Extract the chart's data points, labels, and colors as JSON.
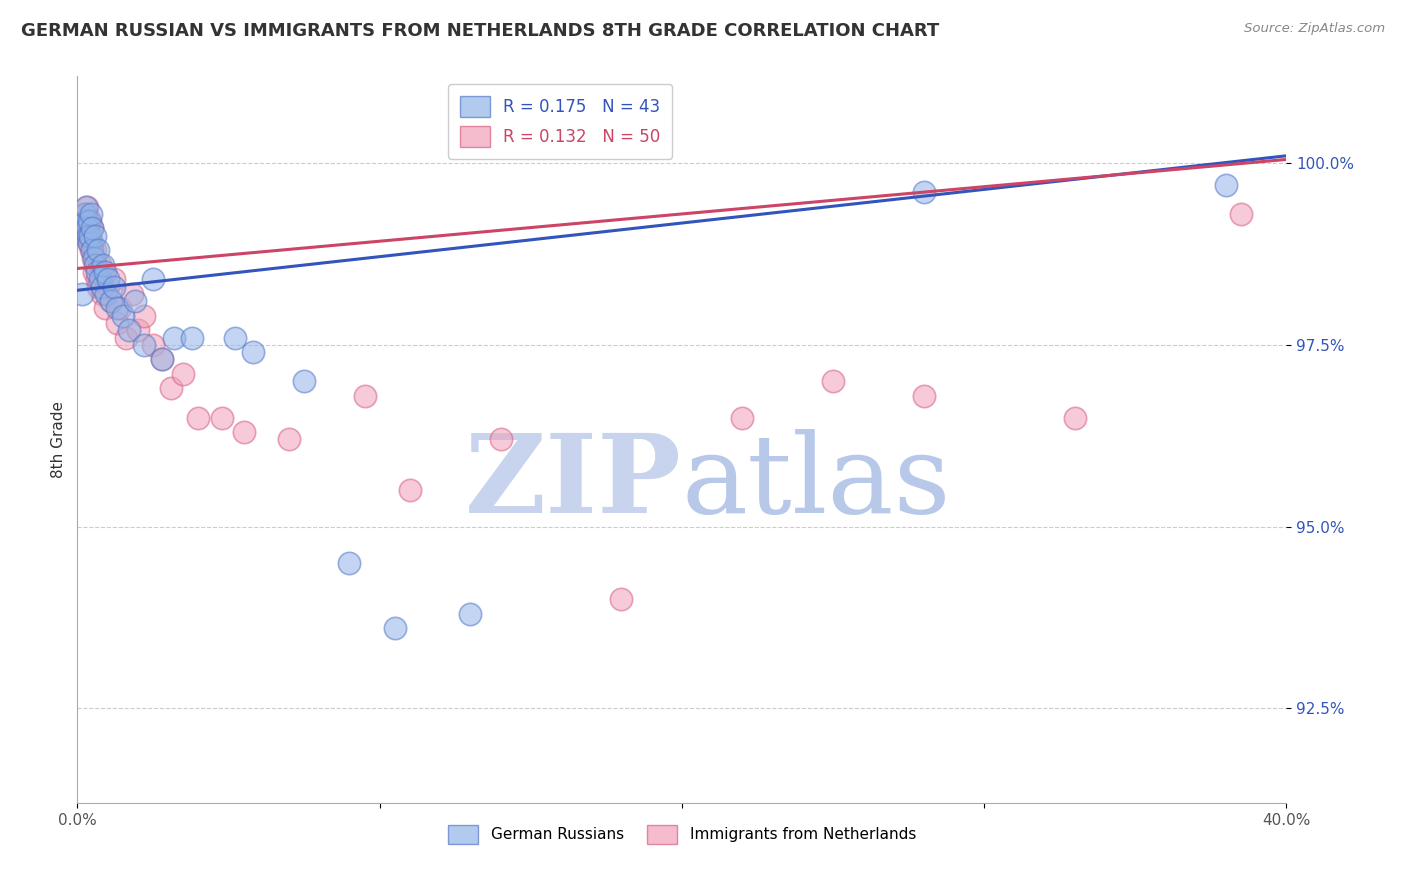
{
  "title": "GERMAN RUSSIAN VS IMMIGRANTS FROM NETHERLANDS 8TH GRADE CORRELATION CHART",
  "source": "Source: ZipAtlas.com",
  "ylabel": "8th Grade",
  "yticks": [
    92.5,
    95.0,
    97.5,
    100.0
  ],
  "ytick_labels": [
    "92.5%",
    "95.0%",
    "97.5%",
    "100.0%"
  ],
  "x_min": 0.0,
  "x_max": 40.0,
  "y_min": 91.2,
  "y_max": 101.2,
  "blue_label": "German Russians",
  "pink_label": "Immigrants from Netherlands",
  "blue_R": 0.175,
  "blue_N": 43,
  "pink_R": 0.132,
  "pink_N": 50,
  "blue_color": "#92B4E8",
  "pink_color": "#F0A0B8",
  "blue_edge_color": "#5578C8",
  "pink_edge_color": "#D86080",
  "blue_line_color": "#3355BB",
  "pink_line_color": "#CC4466",
  "watermark_zip_color": "#C8D4EE",
  "watermark_atlas_color": "#B8C8E8",
  "background_color": "#ffffff",
  "blue_x": [
    0.15,
    0.2,
    0.25,
    0.28,
    0.3,
    0.32,
    0.35,
    0.38,
    0.4,
    0.42,
    0.45,
    0.48,
    0.5,
    0.55,
    0.58,
    0.6,
    0.65,
    0.7,
    0.75,
    0.8,
    0.85,
    0.9,
    0.95,
    1.0,
    1.1,
    1.2,
    1.3,
    1.5,
    1.7,
    1.9,
    2.2,
    2.5,
    2.8,
    3.2,
    3.8,
    5.2,
    5.8,
    7.5,
    9.0,
    10.5,
    13.0,
    28.0,
    38.0
  ],
  "blue_y": [
    98.2,
    99.1,
    99.3,
    99.2,
    99.4,
    99.1,
    99.0,
    98.9,
    99.2,
    99.0,
    99.3,
    98.8,
    99.1,
    98.7,
    99.0,
    98.6,
    98.5,
    98.8,
    98.4,
    98.3,
    98.6,
    98.5,
    98.2,
    98.4,
    98.1,
    98.3,
    98.0,
    97.9,
    97.7,
    98.1,
    97.5,
    98.4,
    97.3,
    97.6,
    97.6,
    97.6,
    97.4,
    97.0,
    94.5,
    93.6,
    93.8,
    99.6,
    99.7
  ],
  "pink_x": [
    0.12,
    0.18,
    0.22,
    0.25,
    0.28,
    0.3,
    0.33,
    0.35,
    0.38,
    0.4,
    0.43,
    0.45,
    0.48,
    0.5,
    0.52,
    0.55,
    0.58,
    0.62,
    0.65,
    0.7,
    0.75,
    0.8,
    0.85,
    0.9,
    1.0,
    1.1,
    1.2,
    1.3,
    1.4,
    1.6,
    1.8,
    2.0,
    2.2,
    2.5,
    2.8,
    3.1,
    3.5,
    4.0,
    4.8,
    5.5,
    7.0,
    9.5,
    11.0,
    14.0,
    18.0,
    22.0,
    25.0,
    28.0,
    33.0,
    38.5
  ],
  "pink_y": [
    99.2,
    99.3,
    99.1,
    99.0,
    99.3,
    99.2,
    99.4,
    99.1,
    99.0,
    98.9,
    99.2,
    98.8,
    99.1,
    98.9,
    98.7,
    98.5,
    98.8,
    98.6,
    98.4,
    98.3,
    98.6,
    98.2,
    98.5,
    98.0,
    98.3,
    98.1,
    98.4,
    97.8,
    98.0,
    97.6,
    98.2,
    97.7,
    97.9,
    97.5,
    97.3,
    96.9,
    97.1,
    96.5,
    96.5,
    96.3,
    96.2,
    96.8,
    95.5,
    96.2,
    94.0,
    96.5,
    97.0,
    96.8,
    96.5,
    99.3
  ],
  "blue_trendline_x": [
    0.0,
    40.0
  ],
  "blue_trendline_y": [
    98.25,
    100.1
  ],
  "pink_trendline_x": [
    0.0,
    40.0
  ],
  "pink_trendline_y": [
    98.55,
    100.05
  ]
}
